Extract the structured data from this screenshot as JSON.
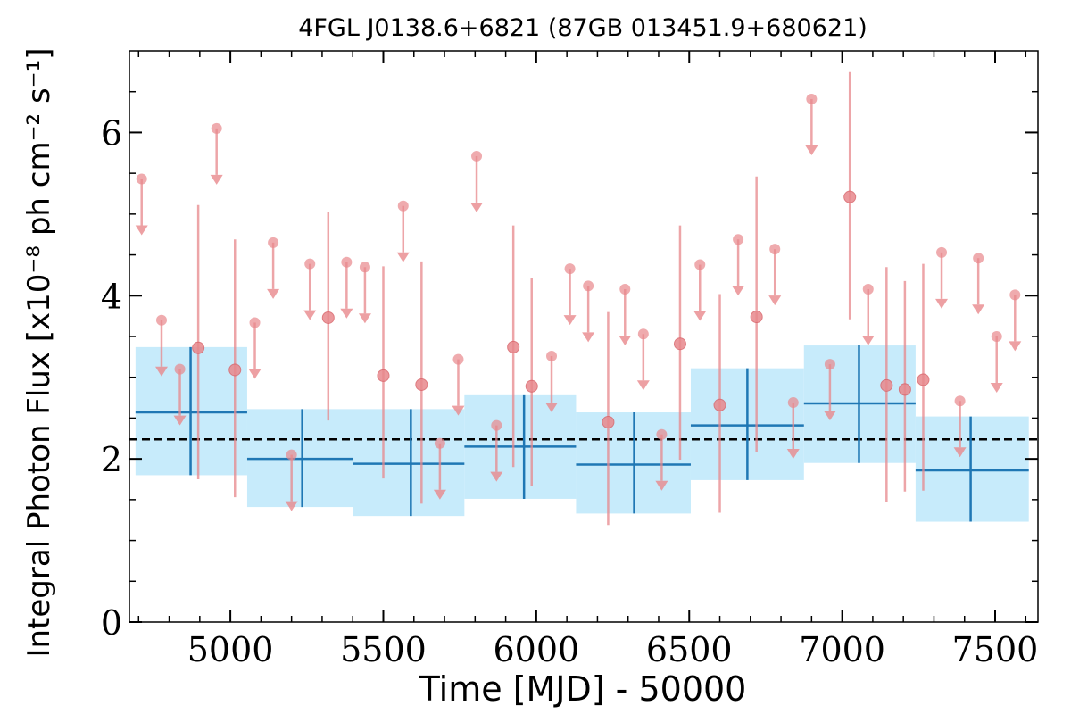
{
  "chart_data": {
    "type": "scatter",
    "title": "4FGL J0138.6+6821 (87GB 013451.9+680621)",
    "xlabel": "Time [MJD] - 50000",
    "ylabel": "Integral Photon Flux [x10⁻⁸ ph cm⁻² s⁻¹]",
    "xlim": [
      4670,
      7640
    ],
    "ylim": [
      0,
      7.0
    ],
    "xticks": [
      5000,
      5500,
      6000,
      6500,
      7000,
      7500
    ],
    "xtick_labels": [
      "5000",
      "5500",
      "6000",
      "6500",
      "7000",
      "7500"
    ],
    "yticks": [
      0,
      2,
      4,
      6
    ],
    "ytick_labels": [
      "0",
      "2",
      "4",
      "6"
    ],
    "mean_flux": 2.24,
    "colors": {
      "points": "#e8888c",
      "bins": "#1f77b4",
      "band": "#c7ebfb",
      "mean": "#000000"
    },
    "series": [
      {
        "kind": "detections",
        "points": [
          {
            "x": 4895,
            "y": 3.36,
            "ylo": 1.75,
            "yhi": 5.11
          },
          {
            "x": 5015,
            "y": 3.09,
            "ylo": 1.53,
            "yhi": 4.69
          },
          {
            "x": 5320,
            "y": 3.73,
            "ylo": 2.47,
            "yhi": 5.03
          },
          {
            "x": 5500,
            "y": 3.02,
            "ylo": 1.76,
            "yhi": 4.36
          },
          {
            "x": 5625,
            "y": 2.91,
            "ylo": 1.45,
            "yhi": 4.42
          },
          {
            "x": 5925,
            "y": 3.37,
            "ylo": 1.9,
            "yhi": 4.86
          },
          {
            "x": 5985,
            "y": 2.89,
            "ylo": 1.67,
            "yhi": 4.22
          },
          {
            "x": 6235,
            "y": 2.45,
            "ylo": 1.19,
            "yhi": 3.8
          },
          {
            "x": 6470,
            "y": 3.41,
            "ylo": 1.99,
            "yhi": 4.86
          },
          {
            "x": 6600,
            "y": 2.66,
            "ylo": 1.34,
            "yhi": 4.02
          },
          {
            "x": 6720,
            "y": 3.74,
            "ylo": 2.08,
            "yhi": 5.46
          },
          {
            "x": 7025,
            "y": 5.21,
            "ylo": 3.71,
            "yhi": 6.74
          },
          {
            "x": 7145,
            "y": 2.9,
            "ylo": 1.47,
            "yhi": 4.35
          },
          {
            "x": 7205,
            "y": 2.85,
            "ylo": 1.6,
            "yhi": 4.18
          },
          {
            "x": 7265,
            "y": 2.97,
            "ylo": 1.61,
            "yhi": 4.39
          }
        ]
      },
      {
        "kind": "upper_limits",
        "points": [
          {
            "x": 4710,
            "y": 5.43
          },
          {
            "x": 4775,
            "y": 3.7
          },
          {
            "x": 4835,
            "y": 3.1
          },
          {
            "x": 4955,
            "y": 6.05
          },
          {
            "x": 5080,
            "y": 3.67
          },
          {
            "x": 5140,
            "y": 4.65
          },
          {
            "x": 5200,
            "y": 2.05
          },
          {
            "x": 5260,
            "y": 4.39
          },
          {
            "x": 5380,
            "y": 4.41
          },
          {
            "x": 5440,
            "y": 4.35
          },
          {
            "x": 5565,
            "y": 5.1
          },
          {
            "x": 5685,
            "y": 2.19
          },
          {
            "x": 5745,
            "y": 3.22
          },
          {
            "x": 5805,
            "y": 5.71
          },
          {
            "x": 5870,
            "y": 2.41
          },
          {
            "x": 6050,
            "y": 3.26
          },
          {
            "x": 6110,
            "y": 4.33
          },
          {
            "x": 6170,
            "y": 4.12
          },
          {
            "x": 6290,
            "y": 4.08
          },
          {
            "x": 6350,
            "y": 3.53
          },
          {
            "x": 6410,
            "y": 2.3
          },
          {
            "x": 6535,
            "y": 4.38
          },
          {
            "x": 6660,
            "y": 4.69
          },
          {
            "x": 6780,
            "y": 4.57
          },
          {
            "x": 6840,
            "y": 2.69
          },
          {
            "x": 6900,
            "y": 6.41
          },
          {
            "x": 6960,
            "y": 3.16
          },
          {
            "x": 7085,
            "y": 4.08
          },
          {
            "x": 7325,
            "y": 4.53
          },
          {
            "x": 7385,
            "y": 2.71
          },
          {
            "x": 7445,
            "y": 4.46
          },
          {
            "x": 7505,
            "y": 3.5
          },
          {
            "x": 7565,
            "y": 4.01
          }
        ]
      },
      {
        "kind": "binned",
        "bins": [
          {
            "x0": 4690,
            "x1": 5055,
            "xc": 4870,
            "y": 2.57,
            "ylo": 1.8,
            "yhi": 3.37
          },
          {
            "x0": 5055,
            "x1": 5400,
            "xc": 5235,
            "y": 2.0,
            "ylo": 1.41,
            "yhi": 2.61
          },
          {
            "x0": 5400,
            "x1": 5765,
            "xc": 5590,
            "y": 1.94,
            "ylo": 1.3,
            "yhi": 2.61
          },
          {
            "x0": 5765,
            "x1": 6130,
            "xc": 5960,
            "y": 2.15,
            "ylo": 1.51,
            "yhi": 2.78
          },
          {
            "x0": 6130,
            "x1": 6505,
            "xc": 6320,
            "y": 1.93,
            "ylo": 1.33,
            "yhi": 2.57
          },
          {
            "x0": 6505,
            "x1": 6875,
            "xc": 6690,
            "y": 2.41,
            "ylo": 1.74,
            "yhi": 3.11
          },
          {
            "x0": 6875,
            "x1": 7240,
            "xc": 7055,
            "y": 2.68,
            "ylo": 1.95,
            "yhi": 3.39
          },
          {
            "x0": 7240,
            "x1": 7610,
            "xc": 7420,
            "y": 1.86,
            "ylo": 1.23,
            "yhi": 2.52
          }
        ]
      }
    ]
  }
}
